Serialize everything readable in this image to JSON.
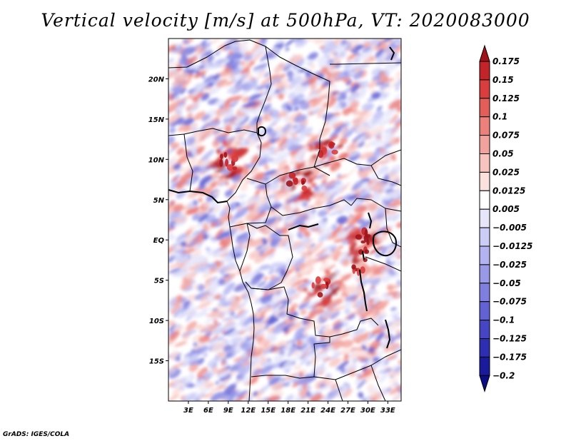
{
  "title": "Vertical velocity [m/s] at 500hPa, VT: 2020083000",
  "footer": "GrADS: IGES/COLA",
  "chart_data": {
    "type": "heatmap",
    "variable": "Vertical velocity",
    "units": "m/s",
    "level": "500hPa",
    "valid_time": "2020083000",
    "lon_range": [
      0,
      35
    ],
    "lat_range": [
      -20,
      25
    ],
    "lon_ticks": [
      {
        "value": 3,
        "label": "3E"
      },
      {
        "value": 6,
        "label": "6E"
      },
      {
        "value": 9,
        "label": "9E"
      },
      {
        "value": 12,
        "label": "12E"
      },
      {
        "value": 15,
        "label": "15E"
      },
      {
        "value": 18,
        "label": "18E"
      },
      {
        "value": 21,
        "label": "21E"
      },
      {
        "value": 24,
        "label": "24E"
      },
      {
        "value": 27,
        "label": "27E"
      },
      {
        "value": 30,
        "label": "30E"
      },
      {
        "value": 33,
        "label": "33E"
      }
    ],
    "lat_ticks": [
      {
        "value": 20,
        "label": "20N"
      },
      {
        "value": 15,
        "label": "15N"
      },
      {
        "value": 10,
        "label": "10N"
      },
      {
        "value": 5,
        "label": "5N"
      },
      {
        "value": 0,
        "label": "EQ"
      },
      {
        "value": -5,
        "label": "5S"
      },
      {
        "value": -10,
        "label": "10S"
      },
      {
        "value": -15,
        "label": "15S"
      }
    ],
    "colorbar": {
      "labels": [
        "0.175",
        "0.15",
        "0.125",
        "0.1",
        "0.075",
        "0.05",
        "0.025",
        "0.0125",
        "0.005",
        "−0.005",
        "−0.0125",
        "−0.025",
        "−0.05",
        "−0.075",
        "−0.1",
        "−0.125",
        "−0.175",
        "−0.2"
      ],
      "colors": [
        "#a01419",
        "#c3242a",
        "#d93d3d",
        "#e35d59",
        "#ec807a",
        "#f2a29c",
        "#f7c3be",
        "#fbe1de",
        "#ffffff",
        "#e6e6fb",
        "#cccdf6",
        "#b2b3f0",
        "#9999e8",
        "#7f7fdf",
        "#6262d4",
        "#4646c4",
        "#2e2eb2",
        "#1a1a9c",
        "#0c0c84"
      ]
    },
    "notable_features": [
      {
        "label": "strong ascent (positive w) over Lake Victoria / East African Rift",
        "lon": 29,
        "lat": -1
      },
      {
        "label": "convective cells over Nigeria/Cameroon",
        "lon": 9,
        "lat": 10
      },
      {
        "label": "convective cells over South Sudan / Ethiopia",
        "lon": 24,
        "lat": 11
      },
      {
        "label": "convective cells over Central African Republic",
        "lon": 19.5,
        "lat": 7
      },
      {
        "label": "ascent over Katanga / DR Congo",
        "lon": 23,
        "lat": -6
      }
    ]
  }
}
